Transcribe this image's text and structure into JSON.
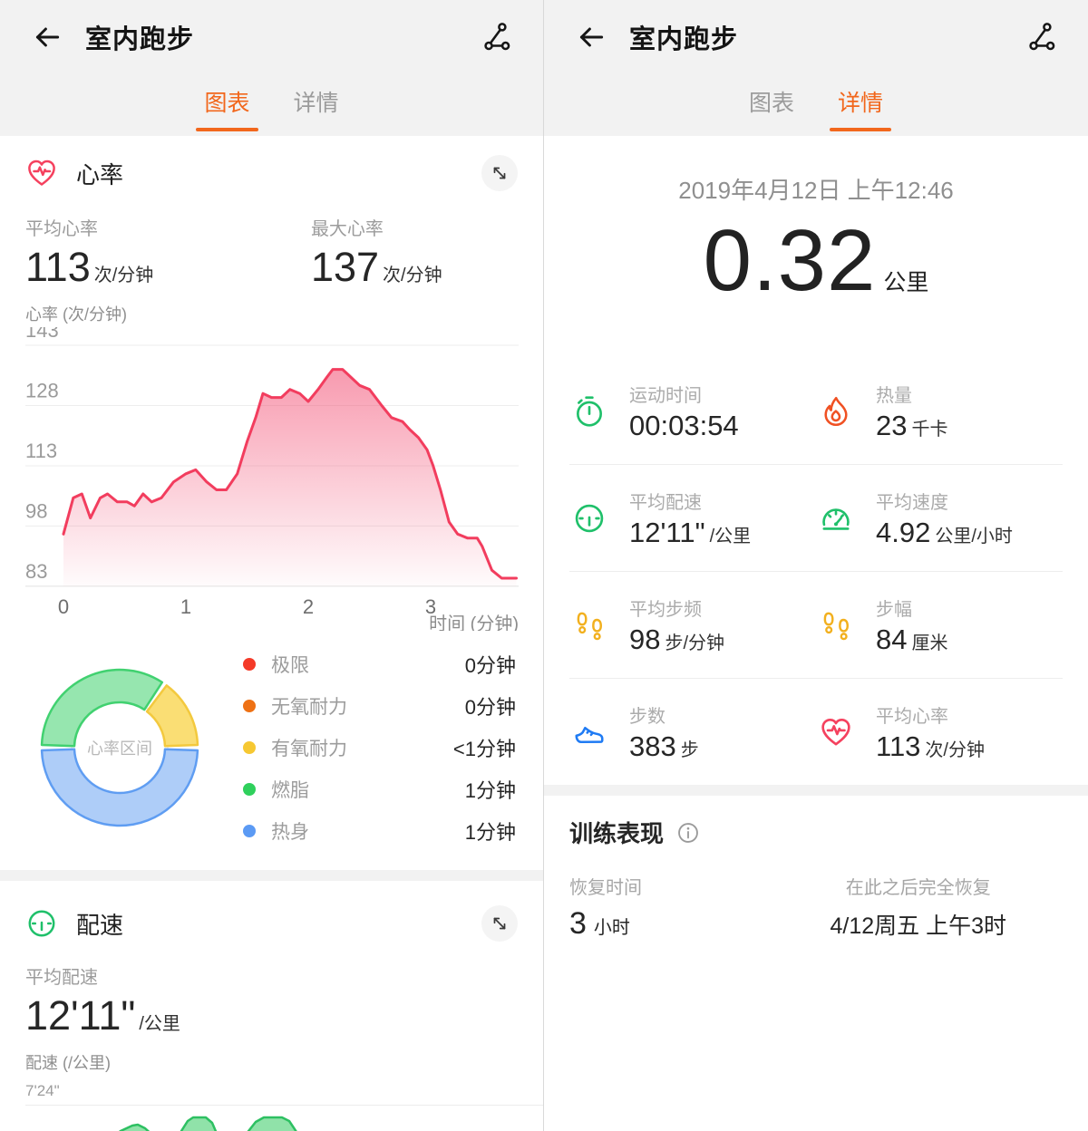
{
  "accent": "#f2671c",
  "left": {
    "header": {
      "title": "室内跑步"
    },
    "tabs": [
      {
        "label": "图表"
      },
      {
        "label": "详情"
      }
    ],
    "heart": {
      "title": "心率",
      "avg_label": "平均心率",
      "avg_value": "113",
      "avg_unit": "次/分钟",
      "max_label": "最大心率",
      "max_value": "137",
      "max_unit": "次/分钟",
      "y_axis_label": "心率 (次/分钟)"
    },
    "pace": {
      "title": "配速",
      "avg_label": "平均配速",
      "avg_value": "12'11\"",
      "avg_unit": "/公里",
      "y_axis_label": "配速 (/公里)",
      "gridline_label": "7'24\""
    }
  },
  "right": {
    "header": {
      "title": "室内跑步"
    },
    "tabs": [
      {
        "label": "图表"
      },
      {
        "label": "详情"
      }
    ],
    "date": "2019年4月12日 上午12:46",
    "distance": {
      "value": "0.32",
      "unit": "公里"
    },
    "stats": [
      {
        "label": "运动时间",
        "value": "00:03:54",
        "unit": "",
        "icon": "stopwatch-icon"
      },
      {
        "label": "热量",
        "value": "23",
        "unit": "千卡",
        "icon": "flame-icon"
      },
      {
        "label": "平均配速",
        "value": "12'11\"",
        "unit": "/公里",
        "icon": "pace-gauge-icon"
      },
      {
        "label": "平均速度",
        "value": "4.92",
        "unit": "公里/小时",
        "icon": "speedometer-icon"
      },
      {
        "label": "平均步频",
        "value": "98",
        "unit": "步/分钟",
        "icon": "footprints-icon"
      },
      {
        "label": "步幅",
        "value": "84",
        "unit": "厘米",
        "icon": "footprints-icon"
      },
      {
        "label": "步数",
        "value": "383",
        "unit": "步",
        "icon": "shoe-icon"
      },
      {
        "label": "平均心率",
        "value": "113",
        "unit": "次/分钟",
        "icon": "heart-icon"
      }
    ],
    "training": {
      "title": "训练表现",
      "recovery_label": "恢复时间",
      "recovery_value": "3",
      "recovery_unit": "小时",
      "full_recovery_label": "在此之后完全恢复",
      "full_recovery_value": "4/12周五 上午3时"
    }
  },
  "chart_data": [
    {
      "id": "heart_rate",
      "type": "area",
      "title": "心率",
      "ylabel": "心率 (次/分钟)",
      "xlabel": "时间 (分钟)",
      "yticks": [
        143,
        128,
        113,
        98,
        83
      ],
      "xticks": [
        0,
        1,
        2,
        3
      ],
      "ylim": [
        83,
        143
      ],
      "xlim": [
        0,
        3.72
      ],
      "line_color": "#f23d5e",
      "grid": true,
      "legend_position": "none",
      "avg_bpm": 113,
      "max_bpm": 137,
      "points": [
        [
          0,
          96
        ],
        [
          0.08,
          105
        ],
        [
          0.15,
          106
        ],
        [
          0.22,
          100
        ],
        [
          0.3,
          105
        ],
        [
          0.36,
          106
        ],
        [
          0.44,
          104
        ],
        [
          0.52,
          104
        ],
        [
          0.58,
          103
        ],
        [
          0.65,
          106
        ],
        [
          0.72,
          104
        ],
        [
          0.8,
          105
        ],
        [
          0.9,
          109
        ],
        [
          1.0,
          111
        ],
        [
          1.08,
          112
        ],
        [
          1.17,
          109
        ],
        [
          1.25,
          107
        ],
        [
          1.33,
          107
        ],
        [
          1.42,
          111
        ],
        [
          1.5,
          119
        ],
        [
          1.57,
          125
        ],
        [
          1.63,
          131
        ],
        [
          1.7,
          130
        ],
        [
          1.78,
          130
        ],
        [
          1.85,
          132
        ],
        [
          1.93,
          131
        ],
        [
          2.0,
          129
        ],
        [
          2.08,
          132
        ],
        [
          2.15,
          135
        ],
        [
          2.2,
          137
        ],
        [
          2.28,
          137
        ],
        [
          2.35,
          135
        ],
        [
          2.42,
          133
        ],
        [
          2.5,
          132
        ],
        [
          2.6,
          128
        ],
        [
          2.68,
          125
        ],
        [
          2.77,
          124
        ],
        [
          2.83,
          122
        ],
        [
          2.9,
          120
        ],
        [
          2.97,
          117
        ],
        [
          3.02,
          113
        ],
        [
          3.08,
          107
        ],
        [
          3.15,
          99
        ],
        [
          3.22,
          96
        ],
        [
          3.3,
          95
        ],
        [
          3.38,
          95
        ],
        [
          3.42,
          93
        ],
        [
          3.5,
          87
        ],
        [
          3.58,
          85
        ],
        [
          3.65,
          85
        ],
        [
          3.7,
          85
        ]
      ]
    },
    {
      "id": "hr_zones",
      "type": "pie",
      "center_label": "心率区间",
      "legend": [
        {
          "name": "极限",
          "time": "0分钟",
          "color": "#f43a28"
        },
        {
          "name": "无氧耐力",
          "time": "0分钟",
          "color": "#ee7114"
        },
        {
          "name": "有氧耐力",
          "time": "<1分钟",
          "color": "#f6c832"
        },
        {
          "name": "燃脂",
          "time": "1分钟",
          "color": "#2fd05c"
        },
        {
          "name": "热身",
          "time": "1分钟",
          "color": "#5b9af4"
        }
      ],
      "arcs": [
        {
          "zone": "燃脂",
          "start_deg": -88,
          "end_deg": 33,
          "fill": "#96e6af",
          "stroke": "#41d170"
        },
        {
          "zone": "有氧耐力",
          "start_deg": 37,
          "end_deg": 88,
          "fill": "#fade74",
          "stroke": "#f3c93e"
        },
        {
          "zone": "热身",
          "start_deg": 92,
          "end_deg": 268,
          "fill": "#aecdf8",
          "stroke": "#5f9df2"
        }
      ]
    },
    {
      "id": "pace",
      "type": "area",
      "ylabel": "配速 (/公里)",
      "gridline_label": "7'24\"",
      "fill": "#90e2a9",
      "stroke": "#2dc062",
      "polylines": [
        [
          [
            105,
            48
          ],
          [
            120,
            38
          ],
          [
            133,
            28
          ],
          [
            146,
            22
          ],
          [
            152,
            21
          ],
          [
            160,
            25
          ],
          [
            172,
            36
          ],
          [
            183,
            48
          ]
        ],
        [
          [
            188,
            48
          ],
          [
            192,
            44
          ],
          [
            200,
            28
          ],
          [
            207,
            17
          ],
          [
            213,
            13
          ],
          [
            227,
            13
          ],
          [
            234,
            19
          ],
          [
            240,
            33
          ],
          [
            245,
            48
          ]
        ],
        [
          [
            262,
            48
          ],
          [
            271,
            32
          ],
          [
            282,
            18
          ],
          [
            291,
            13
          ],
          [
            311,
            13
          ],
          [
            319,
            17
          ],
          [
            329,
            32
          ],
          [
            337,
            48
          ]
        ]
      ]
    }
  ]
}
